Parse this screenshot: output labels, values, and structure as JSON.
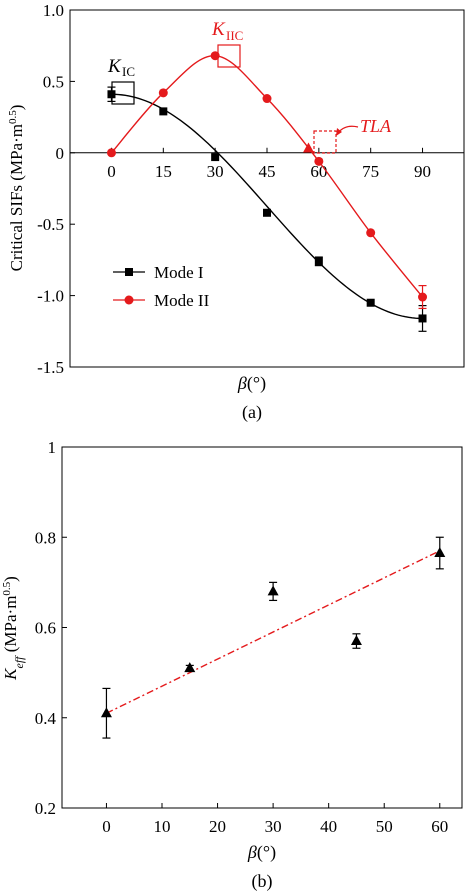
{
  "colors": {
    "mode1": "#000000",
    "mode2": "#e41a1c",
    "trend": "#e41a1c"
  },
  "chart_data": [
    {
      "type": "line",
      "panel_label": "(a)",
      "xlabel": "β(°)",
      "ylabel": "Critical SIFs (MPa·m0.5)",
      "xlim": [
        -12,
        102
      ],
      "ylim": [
        -1.5,
        1.0
      ],
      "x_ticks": [
        "0",
        "15",
        "30",
        "45",
        "60",
        "75",
        "90"
      ],
      "x_tick_values": [
        0,
        15,
        30,
        45,
        60,
        75,
        90
      ],
      "y_ticks": [
        "1.0",
        "0.5",
        "0",
        "-0.5",
        "-1.0",
        "-1.5"
      ],
      "y_tick_values": [
        1.0,
        0.5,
        0,
        -0.5,
        -1.0,
        -1.5
      ],
      "legend_position": "lower-left",
      "series": [
        {
          "name": "Mode I",
          "marker": "square",
          "x": [
            0,
            15,
            30,
            45,
            60,
            75,
            90
          ],
          "values": [
            0.41,
            0.29,
            -0.03,
            -0.42,
            -0.76,
            -1.05,
            -1.16
          ],
          "errors": [
            0.05,
            0.0,
            0.0,
            0.0,
            0.03,
            0.0,
            0.09
          ]
        },
        {
          "name": "Mode II",
          "marker": "circle",
          "x": [
            0,
            15,
            30,
            45,
            60,
            75,
            90
          ],
          "values": [
            0.0,
            0.42,
            0.68,
            0.38,
            -0.06,
            -0.56,
            -1.01
          ],
          "errors": [
            0.0,
            0.0,
            0.0,
            0.0,
            0.0,
            0.0,
            0.08
          ]
        }
      ],
      "annotations": {
        "kic": {
          "main": "K",
          "sub": "IC"
        },
        "kiic": {
          "main": "K",
          "sub": "IIC"
        },
        "tla": {
          "text": "TLA",
          "x": 57,
          "y": 0.03
        }
      }
    },
    {
      "type": "scatter",
      "panel_label": "(b)",
      "xlabel": "β(°)",
      "ylabel": "Keff (MPa·m0.5)",
      "xlim": [
        -8,
        64
      ],
      "ylim": [
        0.2,
        1.0
      ],
      "x_ticks": [
        "0",
        "10",
        "20",
        "30",
        "40",
        "50",
        "60"
      ],
      "x_tick_values": [
        0,
        10,
        20,
        30,
        40,
        50,
        60
      ],
      "y_ticks": [
        "1",
        "0.8",
        "0.6",
        "0.4",
        "0.2"
      ],
      "y_tick_values": [
        1.0,
        0.8,
        0.6,
        0.4,
        0.2
      ],
      "series": [
        {
          "marker": "triangle",
          "x": [
            0,
            15,
            30,
            45,
            60
          ],
          "values": [
            0.41,
            0.51,
            0.68,
            0.57,
            0.765
          ],
          "errors": [
            0.055,
            0.006,
            0.02,
            0.016,
            0.035
          ]
        }
      ],
      "trendline": {
        "x": [
          0,
          60
        ],
        "y": [
          0.41,
          0.77
        ],
        "style": "dash-dot"
      }
    }
  ]
}
